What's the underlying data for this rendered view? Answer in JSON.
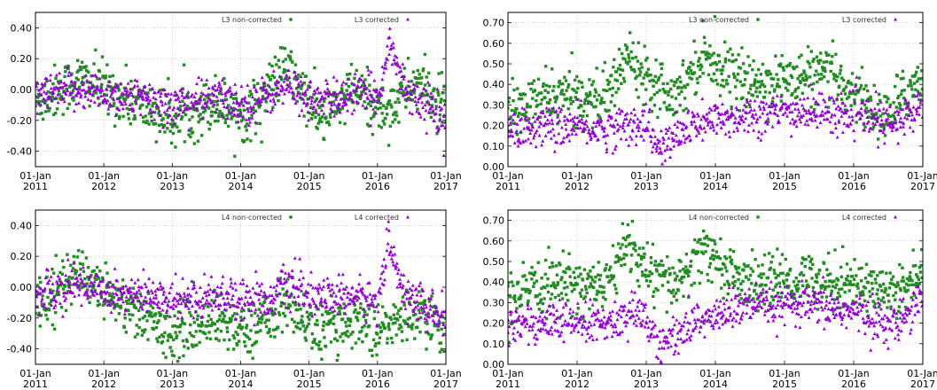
{
  "colors": {
    "noncorrected": "#228b22",
    "corrected": "#9400d3"
  },
  "x_ticks": [
    {
      "line1": "01-Jan",
      "line2": "2011"
    },
    {
      "line1": "01-Jan",
      "line2": "2012"
    },
    {
      "line1": "01-Jan",
      "line2": "2013"
    },
    {
      "line1": "01-Jan",
      "line2": "2014"
    },
    {
      "line1": "01-Jan",
      "line2": "2015"
    },
    {
      "line1": "01-Jan",
      "line2": "2016"
    },
    {
      "line1": "01-Jan",
      "line2": "2017"
    }
  ],
  "chart_data": [
    {
      "type": "scatter",
      "x_range": [
        "2011-01-01",
        "2017-01-01"
      ],
      "ylim": [
        -0.5,
        0.5
      ],
      "ytick_labels": [
        "-0.40",
        "-0.20",
        "0.00",
        "0.20",
        "0.40"
      ],
      "ytick_values": [
        -0.4,
        -0.2,
        0.0,
        0.2,
        0.4
      ],
      "grid": true,
      "legend_placement": "top-right",
      "series": [
        {
          "name": "L3 non-corrected",
          "marker": "square",
          "color": "#228b22",
          "trend": [
            {
              "x": "2011-01",
              "y": -0.08
            },
            {
              "x": "2011-09",
              "y": 0.07
            },
            {
              "x": "2012-06",
              "y": -0.08
            },
            {
              "x": "2013-01",
              "y": -0.2
            },
            {
              "x": "2013-09",
              "y": -0.08
            },
            {
              "x": "2014-02",
              "y": -0.18
            },
            {
              "x": "2014-09",
              "y": 0.15
            },
            {
              "x": "2015-03",
              "y": -0.2
            },
            {
              "x": "2015-09",
              "y": 0.0
            },
            {
              "x": "2016-02",
              "y": -0.15
            },
            {
              "x": "2016-08",
              "y": 0.05
            },
            {
              "x": "2017-01",
              "y": -0.15
            }
          ]
        },
        {
          "name": "L3 corrected",
          "marker": "triangle",
          "color": "#9400d3",
          "trend": [
            {
              "x": "2011-01",
              "y": -0.05
            },
            {
              "x": "2011-09",
              "y": 0.0
            },
            {
              "x": "2012-06",
              "y": -0.05
            },
            {
              "x": "2013-01",
              "y": -0.1
            },
            {
              "x": "2013-09",
              "y": -0.05
            },
            {
              "x": "2014-02",
              "y": -0.1
            },
            {
              "x": "2014-09",
              "y": 0.02
            },
            {
              "x": "2015-03",
              "y": -0.08
            },
            {
              "x": "2015-09",
              "y": -0.03
            },
            {
              "x": "2016-01",
              "y": -0.05
            },
            {
              "x": "2016-03",
              "y": 0.3
            },
            {
              "x": "2016-06",
              "y": 0.0
            },
            {
              "x": "2017-01",
              "y": -0.2
            }
          ]
        }
      ]
    },
    {
      "type": "scatter",
      "x_range": [
        "2011-01-01",
        "2017-01-01"
      ],
      "ylim": [
        0.0,
        0.75
      ],
      "ytick_labels": [
        "0.00",
        "0.10",
        "0.20",
        "0.30",
        "0.40",
        "0.50",
        "0.60",
        "0.70"
      ],
      "ytick_values": [
        0.0,
        0.1,
        0.2,
        0.3,
        0.4,
        0.5,
        0.6,
        0.7
      ],
      "grid": true,
      "legend_placement": "top-right",
      "series": [
        {
          "name": "L3 non-corrected",
          "marker": "square",
          "color": "#228b22",
          "trend": [
            {
              "x": "2011-01",
              "y": 0.25
            },
            {
              "x": "2011-09",
              "y": 0.35
            },
            {
              "x": "2012-06",
              "y": 0.33
            },
            {
              "x": "2012-10",
              "y": 0.55
            },
            {
              "x": "2013-01",
              "y": 0.45
            },
            {
              "x": "2013-06",
              "y": 0.35
            },
            {
              "x": "2013-11",
              "y": 0.55
            },
            {
              "x": "2014-06",
              "y": 0.4
            },
            {
              "x": "2015-01",
              "y": 0.42
            },
            {
              "x": "2015-08",
              "y": 0.45
            },
            {
              "x": "2016-02",
              "y": 0.35
            },
            {
              "x": "2016-06",
              "y": 0.22
            },
            {
              "x": "2017-01",
              "y": 0.45
            }
          ]
        },
        {
          "name": "L3 corrected",
          "marker": "triangle",
          "color": "#9400d3",
          "trend": [
            {
              "x": "2011-01",
              "y": 0.18
            },
            {
              "x": "2011-09",
              "y": 0.2
            },
            {
              "x": "2012-06",
              "y": 0.18
            },
            {
              "x": "2013-01",
              "y": 0.22
            },
            {
              "x": "2013-03",
              "y": 0.08
            },
            {
              "x": "2013-09",
              "y": 0.2
            },
            {
              "x": "2014-06",
              "y": 0.25
            },
            {
              "x": "2015-06",
              "y": 0.27
            },
            {
              "x": "2016-02",
              "y": 0.25
            },
            {
              "x": "2016-08",
              "y": 0.2
            },
            {
              "x": "2017-01",
              "y": 0.3
            }
          ]
        }
      ]
    },
    {
      "type": "scatter",
      "x_range": [
        "2011-01-01",
        "2017-01-01"
      ],
      "ylim": [
        -0.5,
        0.5
      ],
      "ytick_labels": [
        "-0.40",
        "-0.20",
        "0.00",
        "0.20",
        "0.40"
      ],
      "ytick_values": [
        -0.4,
        -0.2,
        0.0,
        0.2,
        0.4
      ],
      "grid": true,
      "legend_placement": "top-right",
      "series": [
        {
          "name": "L4 non-corrected",
          "marker": "square",
          "color": "#228b22",
          "trend": [
            {
              "x": "2011-01",
              "y": -0.1
            },
            {
              "x": "2011-09",
              "y": 0.1
            },
            {
              "x": "2012-06",
              "y": -0.15
            },
            {
              "x": "2013-01",
              "y": -0.3
            },
            {
              "x": "2013-09",
              "y": -0.2
            },
            {
              "x": "2014-02",
              "y": -0.3
            },
            {
              "x": "2014-09",
              "y": -0.1
            },
            {
              "x": "2015-03",
              "y": -0.3
            },
            {
              "x": "2015-09",
              "y": -0.2
            },
            {
              "x": "2016-02",
              "y": -0.28
            },
            {
              "x": "2016-08",
              "y": -0.15
            },
            {
              "x": "2017-01",
              "y": -0.3
            }
          ]
        },
        {
          "name": "L4 corrected",
          "marker": "triangle",
          "color": "#9400d3",
          "trend": [
            {
              "x": "2011-01",
              "y": -0.05
            },
            {
              "x": "2011-09",
              "y": 0.02
            },
            {
              "x": "2012-06",
              "y": -0.05
            },
            {
              "x": "2013-01",
              "y": -0.08
            },
            {
              "x": "2013-09",
              "y": -0.05
            },
            {
              "x": "2014-06",
              "y": -0.08
            },
            {
              "x": "2014-09",
              "y": 0.02
            },
            {
              "x": "2015-03",
              "y": -0.08
            },
            {
              "x": "2015-09",
              "y": -0.05
            },
            {
              "x": "2016-01",
              "y": -0.1
            },
            {
              "x": "2016-03",
              "y": 0.28
            },
            {
              "x": "2016-06",
              "y": -0.05
            },
            {
              "x": "2017-01",
              "y": -0.22
            }
          ]
        }
      ]
    },
    {
      "type": "scatter",
      "x_range": [
        "2011-01-01",
        "2017-01-01"
      ],
      "ylim": [
        0.0,
        0.75
      ],
      "ytick_labels": [
        "0.00",
        "0.10",
        "0.20",
        "0.30",
        "0.40",
        "0.50",
        "0.60",
        "0.70"
      ],
      "ytick_values": [
        0.0,
        0.1,
        0.2,
        0.3,
        0.4,
        0.5,
        0.6,
        0.7
      ],
      "grid": true,
      "legend_placement": "top-right",
      "series": [
        {
          "name": "L4 non-corrected",
          "marker": "square",
          "color": "#228b22",
          "trend": [
            {
              "x": "2011-01",
              "y": 0.3
            },
            {
              "x": "2011-09",
              "y": 0.4
            },
            {
              "x": "2012-06",
              "y": 0.38
            },
            {
              "x": "2012-10",
              "y": 0.6
            },
            {
              "x": "2013-01",
              "y": 0.45
            },
            {
              "x": "2013-06",
              "y": 0.38
            },
            {
              "x": "2013-11",
              "y": 0.55
            },
            {
              "x": "2014-06",
              "y": 0.4
            },
            {
              "x": "2015-01",
              "y": 0.4
            },
            {
              "x": "2015-08",
              "y": 0.42
            },
            {
              "x": "2016-02",
              "y": 0.38
            },
            {
              "x": "2016-08",
              "y": 0.35
            },
            {
              "x": "2017-01",
              "y": 0.45
            }
          ]
        },
        {
          "name": "L4 corrected",
          "marker": "triangle",
          "color": "#9400d3",
          "trend": [
            {
              "x": "2011-01",
              "y": 0.2
            },
            {
              "x": "2011-09",
              "y": 0.2
            },
            {
              "x": "2012-06",
              "y": 0.2
            },
            {
              "x": "2013-01",
              "y": 0.25
            },
            {
              "x": "2013-03",
              "y": 0.08
            },
            {
              "x": "2013-09",
              "y": 0.2
            },
            {
              "x": "2014-06",
              "y": 0.28
            },
            {
              "x": "2015-06",
              "y": 0.28
            },
            {
              "x": "2016-02",
              "y": 0.25
            },
            {
              "x": "2016-08",
              "y": 0.18
            },
            {
              "x": "2017-01",
              "y": 0.35
            }
          ]
        }
      ]
    }
  ]
}
